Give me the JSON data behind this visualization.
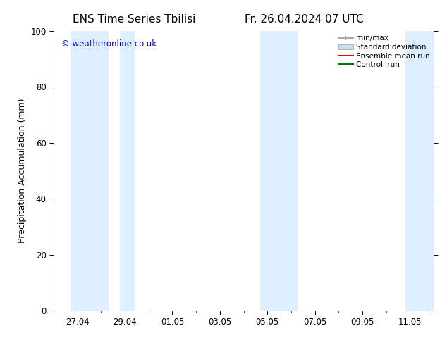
{
  "title_left": "ENS Time Series Tbilisi",
  "title_right": "Fr. 26.04.2024 07 UTC",
  "ylabel": "Precipitation Accumulation (mm)",
  "ylim": [
    0,
    100
  ],
  "yticks": [
    0,
    20,
    40,
    60,
    80,
    100
  ],
  "bg_color": "#ffffff",
  "plot_bg_color": "#ffffff",
  "watermark": "© weatheronline.co.uk",
  "watermark_color": "#0000cc",
  "x_tick_labels": [
    "27.04",
    "29.04",
    "01.05",
    "03.05",
    "05.05",
    "07.05",
    "09.05",
    "11.05"
  ],
  "x_tick_positions": [
    1,
    3,
    5,
    7,
    9,
    11,
    13,
    15
  ],
  "xlim": [
    0,
    16
  ],
  "band_regions": [
    [
      0.7,
      2.3
    ],
    [
      2.8,
      3.4
    ],
    [
      8.7,
      10.3
    ],
    [
      14.8,
      16.0
    ]
  ],
  "shaded_color": "#ddeeff",
  "legend_labels": [
    "min/max",
    "Standard deviation",
    "Ensemble mean run",
    "Controll run"
  ],
  "minmax_color": "#999999",
  "stddev_color": "#c8dff0",
  "ensemble_color": "#ff0000",
  "control_color": "#007700",
  "title_fontsize": 11,
  "axis_fontsize": 9,
  "tick_fontsize": 8.5
}
